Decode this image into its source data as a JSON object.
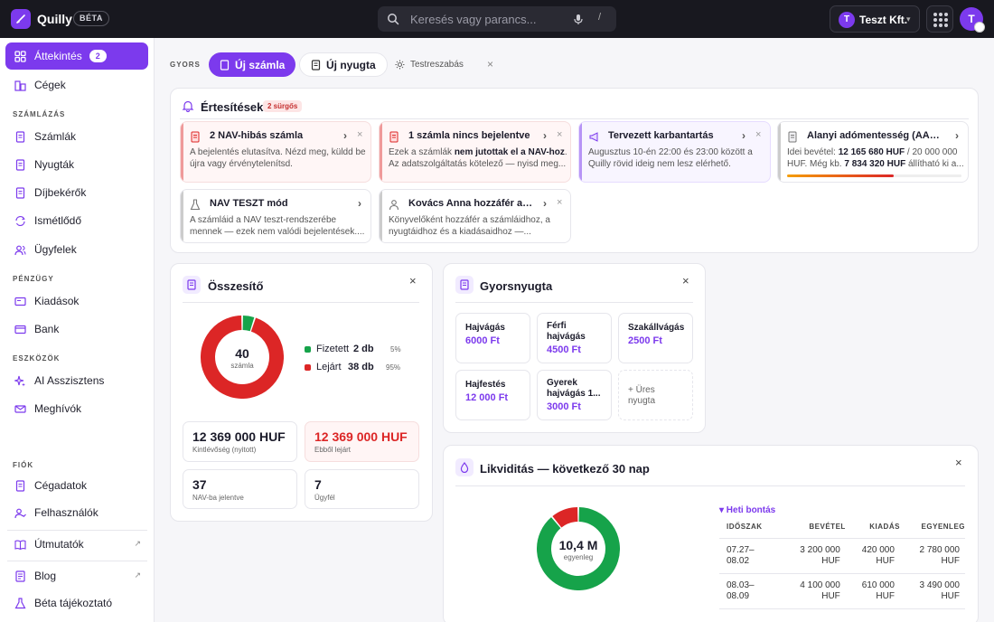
{
  "app": {
    "name": "Quilly",
    "beta": "BÉTA"
  },
  "search": {
    "placeholder": "Keresés vagy parancs...",
    "shortcut": "/"
  },
  "company": {
    "initial": "T",
    "name": "Teszt Kft."
  },
  "user": {
    "initial": "T"
  },
  "sidebar": {
    "overview": {
      "label": "Áttekintés",
      "count": "2"
    },
    "companies": "Cégek",
    "billing_title": "SZÁMLÁZÁS",
    "invoices": "Számlák",
    "receipts": "Nyugták",
    "fee_requests": "Díjbekérők",
    "recurring": "Ismétlődő",
    "clients": "Ügyfelek",
    "money_title": "PÉNZÜGY",
    "expenses": "Kiadások",
    "bank": "Bank",
    "tools_title": "ESZKÖZÖK",
    "ai": "AI Asszisztens",
    "invites": "Meghívók",
    "account_title": "FIÓK",
    "company_data": "Cégadatok",
    "users": "Felhasználók",
    "guides": "Útmutatók",
    "blog": "Blog",
    "beta_info": "Béta tájékoztató"
  },
  "quick": {
    "label": "GYORS",
    "new_invoice": "Új számla",
    "new_receipt": "Új nyugta",
    "customize": "Testreszabás"
  },
  "notifications": {
    "title": "Értesítések",
    "urgent": "2 sürgős",
    "items": [
      {
        "title": "2 NAV-hibás számla",
        "body": "A bejelentés elutasítva. Nézd meg, küldd be újra vagy érvénytelenítsd."
      },
      {
        "title": "1 számla nincs bejelentve",
        "body_pre": "Ezek a számlák ",
        "body_bold": "nem jutottak el a NAV-hoz",
        "body_post": ". Az adatszolgáltatás kötelező — nyisd meg..."
      },
      {
        "title": "Tervezett karbantartás",
        "body": "Augusztus 10-én 22:00 és 23:00 között a Quilly rövid ideig nem lesz elérhető."
      },
      {
        "title": "Alanyi adómentesség (AAM) é...",
        "body_pre": "Idei bevétel: ",
        "body_bold": "12 165 680 HUF",
        "body_mid": " / 20 000 000 HUF. Még kb. ",
        "body_bold2": "7 834 320 HUF",
        "body_post": " állítható ki a..."
      },
      {
        "title": "NAV TESZT mód",
        "body": "A számláid a NAV teszt-rendszerébe mennek — ezek nem valódi bejelentések...."
      },
      {
        "title": "Kovács Anna hozzáfér a cé...",
        "body": "Könyvelőként hozzáfér a számláidhoz, a nyugtáidhoz és a kiadásaidhoz —..."
      }
    ],
    "aam_progress": 0.61
  },
  "summary": {
    "title": "Összesítő",
    "total": "40",
    "total_label": "számla",
    "legend": [
      {
        "name": "Fizetett",
        "count": "2 db",
        "pct": "5%",
        "color": "#16a34a",
        "value": 2
      },
      {
        "name": "Lejárt",
        "count": "38 db",
        "pct": "95%",
        "color": "#dc2626",
        "value": 38
      }
    ],
    "stats": [
      {
        "value": "12 369 000 HUF",
        "label": "Kintlévőség (nyitott)"
      },
      {
        "value": "12 369 000 HUF",
        "label": "Ebből lejárt"
      },
      {
        "value": "37",
        "label": "NAV-ba jelentve"
      },
      {
        "value": "7",
        "label": "Ügyfél"
      }
    ]
  },
  "quick_receipt": {
    "title": "Gyorsnyugta",
    "items": [
      {
        "name": "Hajvágás",
        "price": "6000 Ft"
      },
      {
        "name": "Férfi hajvágás",
        "price": "4500 Ft"
      },
      {
        "name": "Szakállvágás",
        "price": "2500 Ft"
      },
      {
        "name": "Hajfestés",
        "price": "12 000 Ft"
      },
      {
        "name": "Gyerek hajvágás 1...",
        "price": "3000 Ft"
      }
    ],
    "add": "+ Üres nyugta"
  },
  "liquidity": {
    "title": "Likviditás — következő 30 nap",
    "center": "10,4 M",
    "center_label": "egyenleg",
    "weekly": "▾ Heti bontás",
    "headers": [
      "IDŐSZAK",
      "BEVÉTEL",
      "KIADÁS",
      "EGYENLEG"
    ],
    "rows": [
      [
        "07.27–\n08.02",
        "3 200 000\nHUF",
        "420 000\nHUF",
        "2 780 000\nHUF"
      ],
      [
        "08.03–\n08.09",
        "4 100 000\nHUF",
        "610 000\nHUF",
        "3 490 000\nHUF"
      ]
    ],
    "income_share": 0.89,
    "colors": {
      "income": "#16a34a",
      "expense": "#dc2626"
    }
  }
}
